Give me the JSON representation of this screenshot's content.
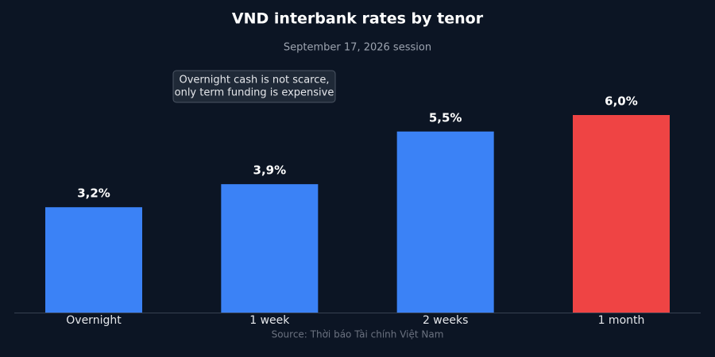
{
  "chart_data": {
    "type": "bar",
    "title": "VND interbank rates by tenor",
    "subtitle": "September 17, 2026 session",
    "categories": [
      "Overnight",
      "1 week",
      "2 weeks",
      "1 month"
    ],
    "values": [
      3.2,
      3.9,
      5.5,
      6.0
    ],
    "value_labels": [
      "3,2%",
      "3,9%",
      "5,5%",
      "6,0%"
    ],
    "colors": [
      "#3b82f6",
      "#3b82f6",
      "#3b82f6",
      "#ef4444"
    ],
    "annotation": [
      "Overnight cash is not scarce,",
      "only term funding is expensive"
    ],
    "source": "Source: Thời báo Tài chính Việt Nam"
  }
}
